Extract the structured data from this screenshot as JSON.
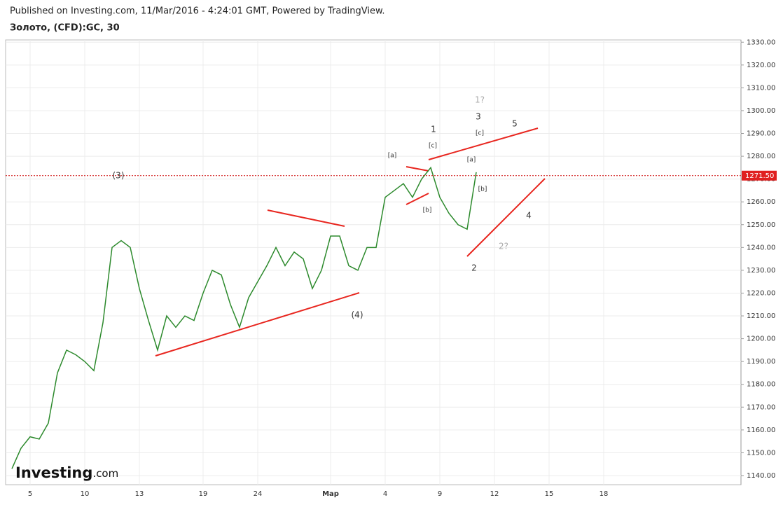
{
  "header": {
    "published": "Published on Investing.com, 11/Mar/2016 - 4:24:01 GMT, Powered by TradingView.",
    "symbol": "Золото, (CFD):GC, 30",
    "logo": "Investing",
    "logo_suffix": ".com"
  },
  "chart_data": {
    "type": "line",
    "color": "#2d8a2d",
    "categories": [
      null,
      null,
      null,
      "5",
      null,
      null,
      null,
      null,
      null,
      "10",
      null,
      null,
      null,
      null,
      null,
      "13",
      null,
      null,
      null,
      null,
      null,
      null,
      "19",
      null,
      null,
      null,
      null,
      null,
      "24",
      null,
      null,
      null,
      null,
      null,
      null,
      null,
      "Мар",
      null,
      null,
      null,
      null,
      null,
      "4",
      null,
      null,
      null,
      null,
      null,
      "9",
      null,
      null,
      null,
      null,
      null,
      "12",
      null,
      null,
      null,
      null,
      null,
      "15",
      null,
      null,
      null,
      null,
      null,
      "18",
      null,
      null,
      null,
      null,
      null,
      null,
      null,
      null,
      null,
      null,
      null,
      null,
      null,
      null
    ],
    "values": [
      null,
      1143,
      1152,
      1157,
      1156,
      1163,
      1185,
      1195,
      1193,
      1190,
      1186,
      1207,
      1240,
      1243,
      1240,
      1222,
      1208,
      1195,
      1210,
      1205,
      1210,
      1208,
      1220,
      1230,
      1228,
      1215,
      1205,
      1218,
      1225,
      1232,
      1240,
      1232,
      1238,
      1235,
      1222,
      1230,
      1245,
      1245,
      1232,
      1230,
      1240,
      1240,
      1262,
      1265,
      1268,
      1262,
      1270,
      1275,
      1262,
      1255,
      1250,
      1248,
      1273,
      null,
      null,
      null,
      null,
      null,
      null,
      null,
      null,
      null,
      null,
      null,
      null,
      null,
      null,
      null,
      null,
      null,
      null,
      null,
      null,
      null,
      null,
      null,
      null,
      null,
      null,
      null,
      null
    ],
    "ylim": [
      1136,
      1331
    ],
    "yticks": [
      {
        "value": 1140,
        "label": "1140.00"
      },
      {
        "value": 1150,
        "label": "1150.00"
      },
      {
        "value": 1160,
        "label": "1160.00"
      },
      {
        "value": 1170,
        "label": "1170.00"
      },
      {
        "value": 1180,
        "label": "1180.00"
      },
      {
        "value": 1190,
        "label": "1190.00"
      },
      {
        "value": 1200,
        "label": "1200.00"
      },
      {
        "value": 1210,
        "label": "1210.00"
      },
      {
        "value": 1220,
        "label": "1220.00"
      },
      {
        "value": 1230,
        "label": "1230.00"
      },
      {
        "value": 1240,
        "label": "1240.00"
      },
      {
        "value": 1250,
        "label": "1250.00"
      },
      {
        "value": 1260,
        "label": "1260.00"
      },
      {
        "value": 1270,
        "label": "1270.00"
      },
      {
        "value": 1280,
        "label": "1280.00"
      },
      {
        "value": 1290,
        "label": "1290.00"
      },
      {
        "value": 1300,
        "label": "1300.00"
      },
      {
        "value": 1310,
        "label": "1310.00"
      },
      {
        "value": 1320,
        "label": "1320.00"
      },
      {
        "value": 1330,
        "label": "1330.00"
      }
    ],
    "last_price": {
      "value": 1271.5,
      "label": "1271.50"
    },
    "grid": true,
    "annotations": [
      "(3)",
      "(4)",
      "[a]",
      "[c]",
      "1",
      "[b]",
      "1?",
      "3",
      "[c]",
      "5",
      "[a]",
      "[b]",
      "4",
      "2?",
      "2"
    ]
  }
}
